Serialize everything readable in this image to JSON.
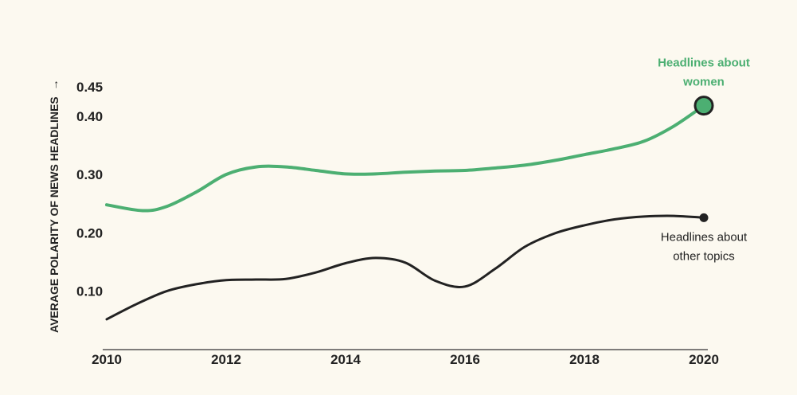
{
  "chart_data": {
    "type": "line",
    "title": "",
    "xlabel": "",
    "ylabel": "AVERAGE POLARITY OF NEWS HEADLINES",
    "ylabel_arrow": "→",
    "xlim": [
      2010,
      2020
    ],
    "ylim": [
      0.0,
      0.45
    ],
    "x_ticks": [
      "2010",
      "2012",
      "2014",
      "2016",
      "2018",
      "2020"
    ],
    "y_ticks": [
      "0.45",
      "0.40",
      "0.30",
      "0.20",
      "0.10"
    ],
    "grid": false,
    "series": [
      {
        "name": "Headlines about women",
        "label_lines": [
          "Headlines about",
          "women"
        ],
        "color": "#4caf72",
        "points": [
          [
            2010,
            0.248
          ],
          [
            2010.6,
            0.238
          ],
          [
            2011,
            0.245
          ],
          [
            2011.5,
            0.27
          ],
          [
            2012,
            0.3
          ],
          [
            2012.5,
            0.313
          ],
          [
            2013,
            0.313
          ],
          [
            2013.5,
            0.307
          ],
          [
            2014,
            0.301
          ],
          [
            2014.5,
            0.301
          ],
          [
            2015,
            0.304
          ],
          [
            2015.5,
            0.306
          ],
          [
            2016,
            0.307
          ],
          [
            2016.5,
            0.311
          ],
          [
            2017,
            0.316
          ],
          [
            2017.5,
            0.324
          ],
          [
            2018,
            0.334
          ],
          [
            2018.5,
            0.344
          ],
          [
            2019,
            0.357
          ],
          [
            2019.5,
            0.383
          ],
          [
            2020,
            0.418
          ]
        ]
      },
      {
        "name": "Headlines about other topics",
        "label_lines": [
          "Headlines about",
          "other topics"
        ],
        "color": "#222222",
        "points": [
          [
            2010,
            0.052
          ],
          [
            2010.5,
            0.078
          ],
          [
            2011,
            0.1
          ],
          [
            2011.5,
            0.112
          ],
          [
            2012,
            0.119
          ],
          [
            2012.5,
            0.12
          ],
          [
            2013,
            0.121
          ],
          [
            2013.5,
            0.132
          ],
          [
            2014,
            0.148
          ],
          [
            2014.5,
            0.157
          ],
          [
            2015,
            0.149
          ],
          [
            2015.5,
            0.118
          ],
          [
            2016,
            0.108
          ],
          [
            2016.5,
            0.138
          ],
          [
            2017,
            0.176
          ],
          [
            2017.5,
            0.199
          ],
          [
            2018,
            0.213
          ],
          [
            2018.5,
            0.223
          ],
          [
            2019,
            0.228
          ],
          [
            2019.5,
            0.229
          ],
          [
            2020,
            0.226
          ]
        ]
      }
    ]
  }
}
